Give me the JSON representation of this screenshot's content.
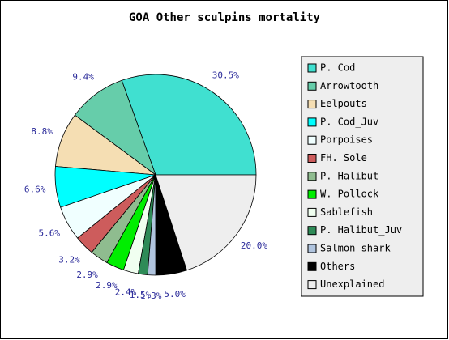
{
  "chart_data": {
    "type": "pie",
    "title": "GOA Other sculpins mortality",
    "categories": [
      "P. Cod",
      "Arrowtooth",
      "Eelpouts",
      "P. Cod_Juv",
      "Porpoises",
      "FH. Sole",
      "P. Halibut",
      "W. Pollock",
      "Sablefish",
      "P. Halibut_Juv",
      "Salmon shark",
      "Others",
      "Unexplained"
    ],
    "values": [
      30.5,
      9.4,
      8.8,
      6.6,
      5.6,
      3.2,
      2.9,
      2.9,
      2.4,
      1.5,
      1.3,
      5.0,
      20.0
    ],
    "value_labels": [
      "30.5%",
      "9.4%",
      "8.8%",
      "6.6%",
      "5.6%",
      "3.2%",
      "2.9%",
      "2.9%",
      "2.4%",
      "1.5%",
      "1.3%",
      "5.0%",
      "20.0%"
    ],
    "colors": [
      "#40e0d0",
      "#66cdaa",
      "#f5deb3",
      "#00ffff",
      "#f0ffff",
      "#cd5c5c",
      "#8fbc8f",
      "#00ee00",
      "#f0fff0",
      "#2e8b57",
      "#b0c4de",
      "#000000",
      "#eeeeee"
    ]
  }
}
